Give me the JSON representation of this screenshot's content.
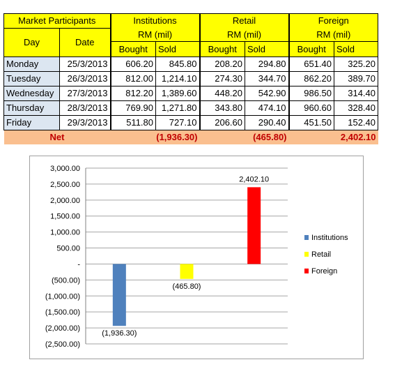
{
  "table": {
    "header": {
      "market_participants": "Market Participants",
      "day": "Day",
      "date": "Date",
      "groups": [
        {
          "name": "Institutions",
          "unit": "RM (mil)"
        },
        {
          "name": "Retail",
          "unit": "RM (mil)"
        },
        {
          "name": "Foreign",
          "unit": "RM (mil)"
        }
      ],
      "bought": "Bought",
      "sold": "Sold"
    },
    "rows": [
      {
        "day": "Monday",
        "date": "25/3/2013",
        "values": [
          "606.20",
          "845.80",
          "208.20",
          "294.80",
          "651.40",
          "325.20"
        ]
      },
      {
        "day": "Tuesday",
        "date": "26/3/2013",
        "values": [
          "812.00",
          "1,214.10",
          "274.30",
          "344.70",
          "862.20",
          "389.70"
        ]
      },
      {
        "day": "Wednesday",
        "date": "27/3/2013",
        "values": [
          "812.20",
          "1,389.60",
          "448.20",
          "542.90",
          "986.50",
          "314.40"
        ]
      },
      {
        "day": "Thursday",
        "date": "28/3/2013",
        "values": [
          "769.90",
          "1,271.80",
          "343.80",
          "474.10",
          "960.60",
          "328.40"
        ]
      },
      {
        "day": "Friday",
        "date": "29/3/2013",
        "values": [
          "511.80",
          "727.10",
          "206.60",
          "290.40",
          "451.50",
          "152.40"
        ]
      }
    ],
    "net": {
      "label": "Net",
      "institutions": "(1,936.30)",
      "retail": "(465.80)",
      "foreign": "2,402.10"
    }
  },
  "chart_data": {
    "type": "bar",
    "categories": [
      "Institutions",
      "Retail",
      "Foreign"
    ],
    "values": [
      -1936.3,
      -465.8,
      2402.1
    ],
    "value_labels": [
      "(1,936.30)",
      "(465.80)",
      "2,402.10"
    ],
    "colors": [
      "#4f81bd",
      "#ffff00",
      "#ff0000"
    ],
    "ylim": [
      -2500,
      3000
    ],
    "yticks": [
      3000,
      2500,
      2000,
      1500,
      1000,
      500,
      0,
      -500,
      -1000,
      -1500,
      -2000,
      -2500
    ],
    "ytick_labels": [
      "3,000.00",
      "2,500.00",
      "2,000.00",
      "1,500.00",
      "1,000.00",
      "500.00",
      "-",
      "(500.00)",
      "(1,000.00)",
      "(1,500.00)",
      "(2,000.00)",
      "(2,500.00)"
    ],
    "grid": true,
    "legend": [
      "Institutions",
      "Retail",
      "Foreign"
    ],
    "legend_position": "right"
  }
}
